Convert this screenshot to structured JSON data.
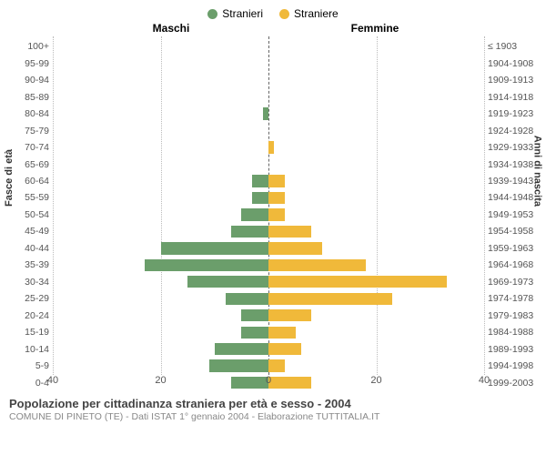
{
  "chart": {
    "type": "population-pyramid",
    "legend": {
      "male_label": "Stranieri",
      "female_label": "Straniere"
    },
    "header": {
      "left": "Maschi",
      "right": "Femmine"
    },
    "axis_left_title": "Fasce di età",
    "axis_right_title": "Anni di nascita",
    "age_bands": [
      "100+",
      "95-99",
      "90-94",
      "85-89",
      "80-84",
      "75-79",
      "70-74",
      "65-69",
      "60-64",
      "55-59",
      "50-54",
      "45-49",
      "40-44",
      "35-39",
      "30-34",
      "25-29",
      "20-24",
      "15-19",
      "10-14",
      "5-9",
      "0-4"
    ],
    "birth_years": [
      "≤ 1903",
      "1904-1908",
      "1909-1913",
      "1914-1918",
      "1919-1923",
      "1924-1928",
      "1929-1933",
      "1934-1938",
      "1939-1943",
      "1944-1948",
      "1949-1953",
      "1954-1958",
      "1959-1963",
      "1964-1968",
      "1969-1973",
      "1974-1978",
      "1979-1983",
      "1984-1988",
      "1989-1993",
      "1994-1998",
      "1999-2003"
    ],
    "male_values": [
      0,
      0,
      0,
      0,
      1,
      0,
      0,
      0,
      3,
      3,
      5,
      7,
      20,
      23,
      15,
      8,
      5,
      5,
      10,
      11,
      7
    ],
    "female_values": [
      0,
      0,
      0,
      0,
      0,
      0,
      1,
      0,
      3,
      3,
      3,
      8,
      10,
      18,
      33,
      23,
      8,
      5,
      6,
      3,
      8
    ],
    "x_max": 40,
    "x_ticks": [
      40,
      20,
      0,
      20,
      40
    ],
    "colors": {
      "male": "#6b9e6b",
      "female": "#f0b93a",
      "grid": "#bbbbbb",
      "center_line": "#666666",
      "background": "#ffffff",
      "text": "#555555"
    },
    "bar_style": {
      "height_pct": 72
    },
    "font": {
      "family": "Arial",
      "label_size": 10.5,
      "legend_size": 12,
      "title_size": 13
    }
  },
  "caption": {
    "title": "Popolazione per cittadinanza straniera per età e sesso - 2004",
    "subtitle": "COMUNE DI PINETO (TE) - Dati ISTAT 1° gennaio 2004 - Elaborazione TUTTITALIA.IT"
  }
}
